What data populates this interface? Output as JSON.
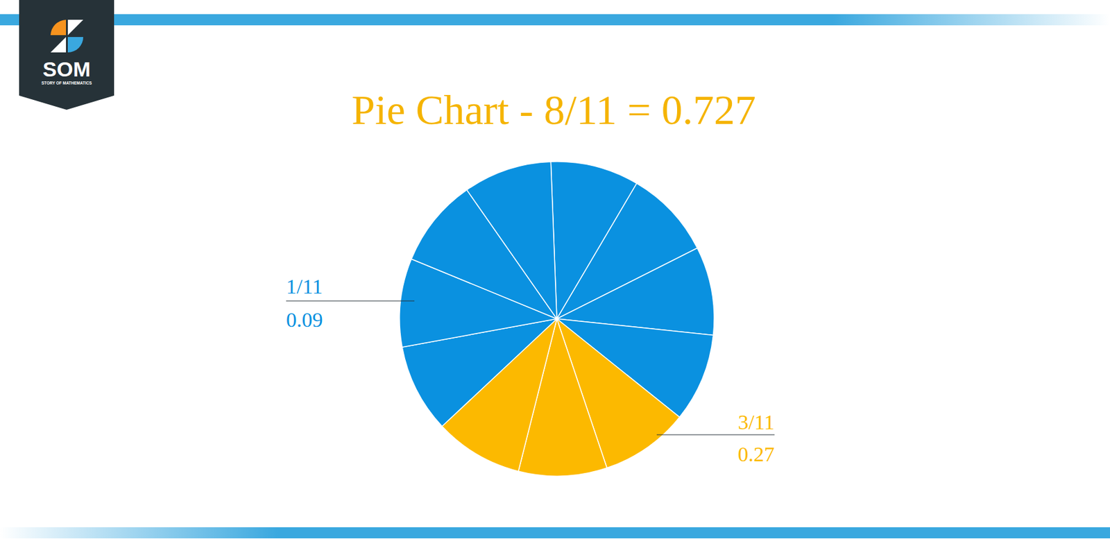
{
  "chart_data": {
    "type": "pie",
    "title": "Pie Chart - 8/11 = 0.727",
    "values": [
      0.0909,
      0.0909,
      0.0909,
      0.0909,
      0.0909,
      0.0909,
      0.0909,
      0.0909,
      0.0909,
      0.0909,
      0.0909
    ],
    "colors": [
      "#0a91e0",
      "#0a91e0",
      "#0a91e0",
      "#0a91e0",
      "#fcb900",
      "#fcb900",
      "#fcb900",
      "#0a91e0",
      "#0a91e0",
      "#0a91e0",
      "#0a91e0"
    ],
    "annotations": [
      {
        "label": "1/11",
        "value": 0.09,
        "color": "#0a91e0"
      },
      {
        "label": "3/11",
        "value": 0.27,
        "color": "#fcb900"
      }
    ]
  },
  "logo": {
    "text": "SOM",
    "tagline": "STORY OF MATHEMATICS"
  }
}
